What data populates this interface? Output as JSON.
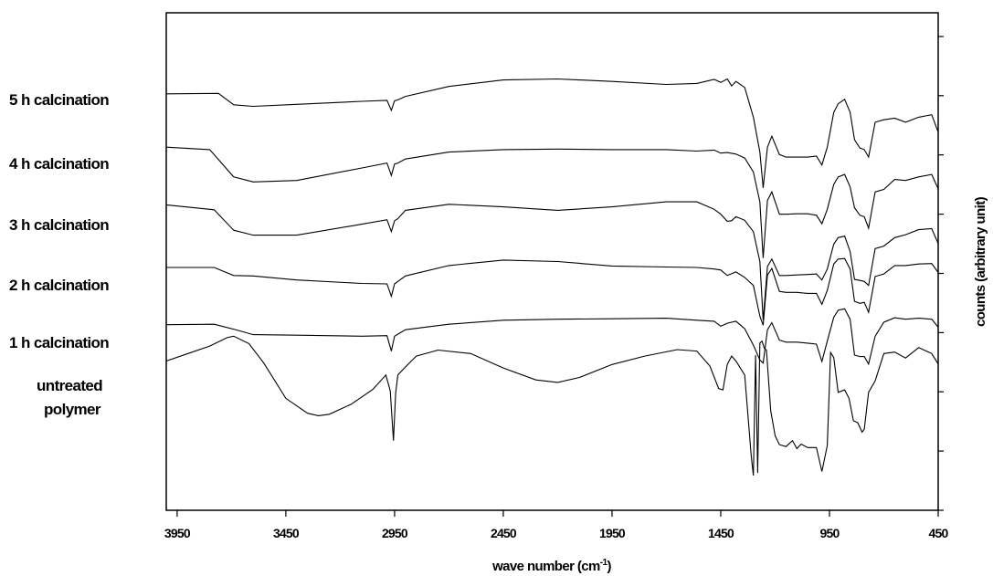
{
  "chart_data": {
    "type": "line",
    "xlabel": "wave number (cm",
    "xlabel_sup": "-1",
    "xlabel_close": ")",
    "ylabel": "counts (arbitrary unit)",
    "xlim": [
      4000,
      450
    ],
    "x_reversed": true,
    "ylim": [
      0,
      100
    ],
    "grid": false,
    "legend": "labels-left",
    "xticks": [
      3950,
      3450,
      2950,
      2450,
      1950,
      1450,
      950,
      450
    ],
    "xtick_labels": [
      "3950",
      "3450",
      "2950",
      "2450",
      "1950",
      "1450",
      "950",
      "450"
    ],
    "yticks": [],
    "series": [
      {
        "name": "5 h calcination",
        "x": [
          4000,
          3760,
          3690,
          3600,
          3400,
          3100,
          2985,
          2965,
          2950,
          2935,
          2900,
          2700,
          2450,
          2200,
          1950,
          1700,
          1560,
          1480,
          1450,
          1420,
          1400,
          1380,
          1340,
          1300,
          1270,
          1255,
          1235,
          1215,
          1180,
          1150,
          1100,
          1050,
          1010,
          985,
          960,
          930,
          910,
          880,
          855,
          835,
          810,
          790,
          770,
          740,
          700,
          650,
          600,
          540,
          480,
          450
        ],
        "values": [
          83.7,
          83.8,
          81.5,
          81.2,
          81.6,
          82.2,
          82.4,
          80.4,
          82.3,
          82.5,
          83.2,
          85.2,
          86.5,
          86.7,
          86.2,
          85.6,
          85.8,
          86.6,
          86.0,
          86.7,
          85.3,
          86.2,
          85.0,
          79.0,
          72.0,
          64.8,
          73.0,
          75.2,
          71.5,
          71.0,
          71.0,
          71.0,
          71.2,
          69.4,
          73.0,
          80.0,
          81.7,
          82.6,
          80.0,
          74.5,
          72.8,
          72.5,
          71.0,
          78.0,
          78.5,
          78.8,
          78.0,
          79.0,
          79.5,
          76.0
        ]
      },
      {
        "name": "4 h calcination",
        "x": [
          4000,
          3800,
          3690,
          3600,
          3400,
          3100,
          2985,
          2965,
          2950,
          2935,
          2900,
          2700,
          2450,
          2200,
          1950,
          1700,
          1560,
          1480,
          1450,
          1420,
          1380,
          1340,
          1300,
          1270,
          1255,
          1235,
          1215,
          1180,
          1150,
          1100,
          1050,
          1010,
          985,
          960,
          930,
          910,
          880,
          855,
          835,
          810,
          790,
          770,
          740,
          700,
          650,
          600,
          540,
          480,
          450
        ],
        "values": [
          73.0,
          72.5,
          67.0,
          66.0,
          66.3,
          68.8,
          69.8,
          67.3,
          69.6,
          69.8,
          70.6,
          72.0,
          72.5,
          72.6,
          72.5,
          72.5,
          72.2,
          72.4,
          71.8,
          71.9,
          71.6,
          70.8,
          68.0,
          62.0,
          50.7,
          62.3,
          64.0,
          59.5,
          59.5,
          59.6,
          59.6,
          59.3,
          57.6,
          60.5,
          65.5,
          67.0,
          67.5,
          65.0,
          60.8,
          59.3,
          59.0,
          56.7,
          64.0,
          64.5,
          66.5,
          66.3,
          67.0,
          67.5,
          64.6
        ]
      },
      {
        "name": "3 h calcination",
        "x": [
          4000,
          3780,
          3690,
          3600,
          3400,
          3100,
          2985,
          2965,
          2950,
          2935,
          2900,
          2700,
          2450,
          2200,
          1950,
          1700,
          1560,
          1480,
          1450,
          1420,
          1400,
          1380,
          1340,
          1300,
          1270,
          1255,
          1235,
          1215,
          1180,
          1150,
          1100,
          1050,
          1010,
          985,
          960,
          930,
          910,
          880,
          855,
          835,
          810,
          790,
          770,
          740,
          700,
          650,
          600,
          540,
          480,
          450
        ],
        "values": [
          61.4,
          60.4,
          56.3,
          55.3,
          55.3,
          57.5,
          58.4,
          56.0,
          58.2,
          58.6,
          60.3,
          61.5,
          61.0,
          60.3,
          61.0,
          62.0,
          62.0,
          60.5,
          59.5,
          58.1,
          58.2,
          59.0,
          58.3,
          56.0,
          50.0,
          38.2,
          49.0,
          50.5,
          47.2,
          47.2,
          47.3,
          47.4,
          47.5,
          46.3,
          48.5,
          53.5,
          54.8,
          55.1,
          52.0,
          46.4,
          46.2,
          46.0,
          45.2,
          52.6,
          53.1,
          54.8,
          55.4,
          56.4,
          56.6,
          53.6
        ]
      },
      {
        "name": "2 h calcination",
        "x": [
          4000,
          3780,
          3690,
          3600,
          3400,
          3100,
          2985,
          2965,
          2950,
          2935,
          2900,
          2700,
          2450,
          2200,
          1950,
          1700,
          1560,
          1480,
          1450,
          1420,
          1380,
          1340,
          1300,
          1270,
          1255,
          1235,
          1215,
          1180,
          1150,
          1100,
          1050,
          1010,
          985,
          960,
          930,
          910,
          880,
          855,
          835,
          810,
          790,
          770,
          740,
          700,
          650,
          600,
          540,
          480,
          450
        ],
        "values": [
          48.8,
          48.8,
          47.2,
          47.1,
          46.3,
          45.6,
          45.5,
          43.0,
          45.5,
          46.0,
          47.1,
          49.2,
          50.3,
          50.0,
          49.1,
          48.9,
          48.8,
          48.5,
          48.3,
          47.2,
          47.9,
          46.8,
          45.2,
          39.0,
          37.2,
          47.3,
          48.6,
          44.0,
          43.8,
          43.8,
          43.6,
          43.6,
          41.4,
          44.2,
          49.5,
          50.5,
          50.6,
          48.5,
          42.0,
          41.6,
          41.8,
          39.8,
          47.0,
          47.5,
          49.2,
          49.2,
          49.5,
          49.6,
          47.8
        ]
      },
      {
        "name": "1 h calcination",
        "x": [
          4000,
          3780,
          3690,
          3600,
          3400,
          3100,
          2985,
          2965,
          2950,
          2935,
          2900,
          2700,
          2450,
          2200,
          1950,
          1700,
          1560,
          1480,
          1450,
          1420,
          1380,
          1340,
          1300,
          1270,
          1255,
          1235,
          1215,
          1180,
          1150,
          1100,
          1050,
          1010,
          985,
          960,
          930,
          910,
          880,
          855,
          835,
          810,
          790,
          770,
          740,
          700,
          650,
          600,
          540,
          480,
          450
        ],
        "values": [
          37.3,
          37.4,
          36.4,
          35.3,
          35.2,
          35.0,
          35.1,
          32.0,
          35.0,
          35.4,
          36.3,
          37.4,
          38.2,
          38.4,
          38.5,
          38.6,
          38.2,
          38.0,
          37.0,
          37.6,
          38.0,
          36.5,
          33.2,
          30.2,
          29.6,
          36.3,
          37.7,
          34.2,
          33.8,
          33.8,
          33.6,
          33.4,
          29.9,
          34.0,
          38.8,
          40.2,
          40.5,
          38.4,
          31.2,
          30.9,
          30.9,
          29.4,
          35.0,
          37.8,
          38.7,
          38.4,
          38.6,
          38.4,
          36.8
        ]
      },
      {
        "name": "untreated polymer",
        "x": [
          4000,
          3900,
          3800,
          3720,
          3690,
          3620,
          3550,
          3450,
          3350,
          3300,
          3250,
          3150,
          3050,
          2990,
          2970,
          2955,
          2945,
          2935,
          2900,
          2850,
          2750,
          2600,
          2450,
          2300,
          2200,
          2100,
          1950,
          1800,
          1650,
          1560,
          1500,
          1460,
          1440,
          1420,
          1400,
          1380,
          1340,
          1310,
          1300,
          1290,
          1280,
          1270,
          1260,
          1250,
          1240,
          1220,
          1200,
          1180,
          1150,
          1120,
          1100,
          1080,
          1050,
          1010,
          985,
          960,
          945,
          930,
          910,
          880,
          860,
          840,
          820,
          800,
          790,
          770,
          740,
          700,
          650,
          600,
          540,
          480,
          450
        ],
        "values": [
          30.0,
          31.5,
          33.0,
          34.7,
          35.0,
          33.5,
          29.5,
          22.5,
          19.5,
          19.0,
          19.3,
          21.3,
          24.3,
          27.2,
          24.0,
          14.0,
          23.5,
          27.2,
          28.8,
          31.0,
          32.2,
          31.5,
          28.6,
          26.2,
          25.7,
          26.7,
          29.3,
          31.0,
          32.3,
          32.0,
          29.0,
          24.5,
          24.2,
          29.3,
          31.0,
          30.0,
          27.2,
          11.0,
          7.0,
          31.2,
          7.5,
          33.6,
          34.0,
          32.6,
          32.2,
          20.0,
          15.0,
          13.2,
          12.8,
          14.0,
          12.4,
          13.3,
          12.6,
          12.6,
          7.8,
          13.0,
          31.7,
          30.7,
          23.7,
          24.2,
          22.5,
          18.0,
          17.6,
          15.7,
          16.3,
          23.7,
          26.0,
          31.5,
          31.8,
          30.6,
          32.7,
          31.5,
          29.4
        ]
      }
    ]
  },
  "labels": {
    "s5": "5 h calcination",
    "s4": "4 h calcination",
    "s3": "3 h calcination",
    "s2": "2 h calcination",
    "s1": "1 h calcination",
    "s0_line1": "untreated",
    "s0_line2": "polymer"
  }
}
